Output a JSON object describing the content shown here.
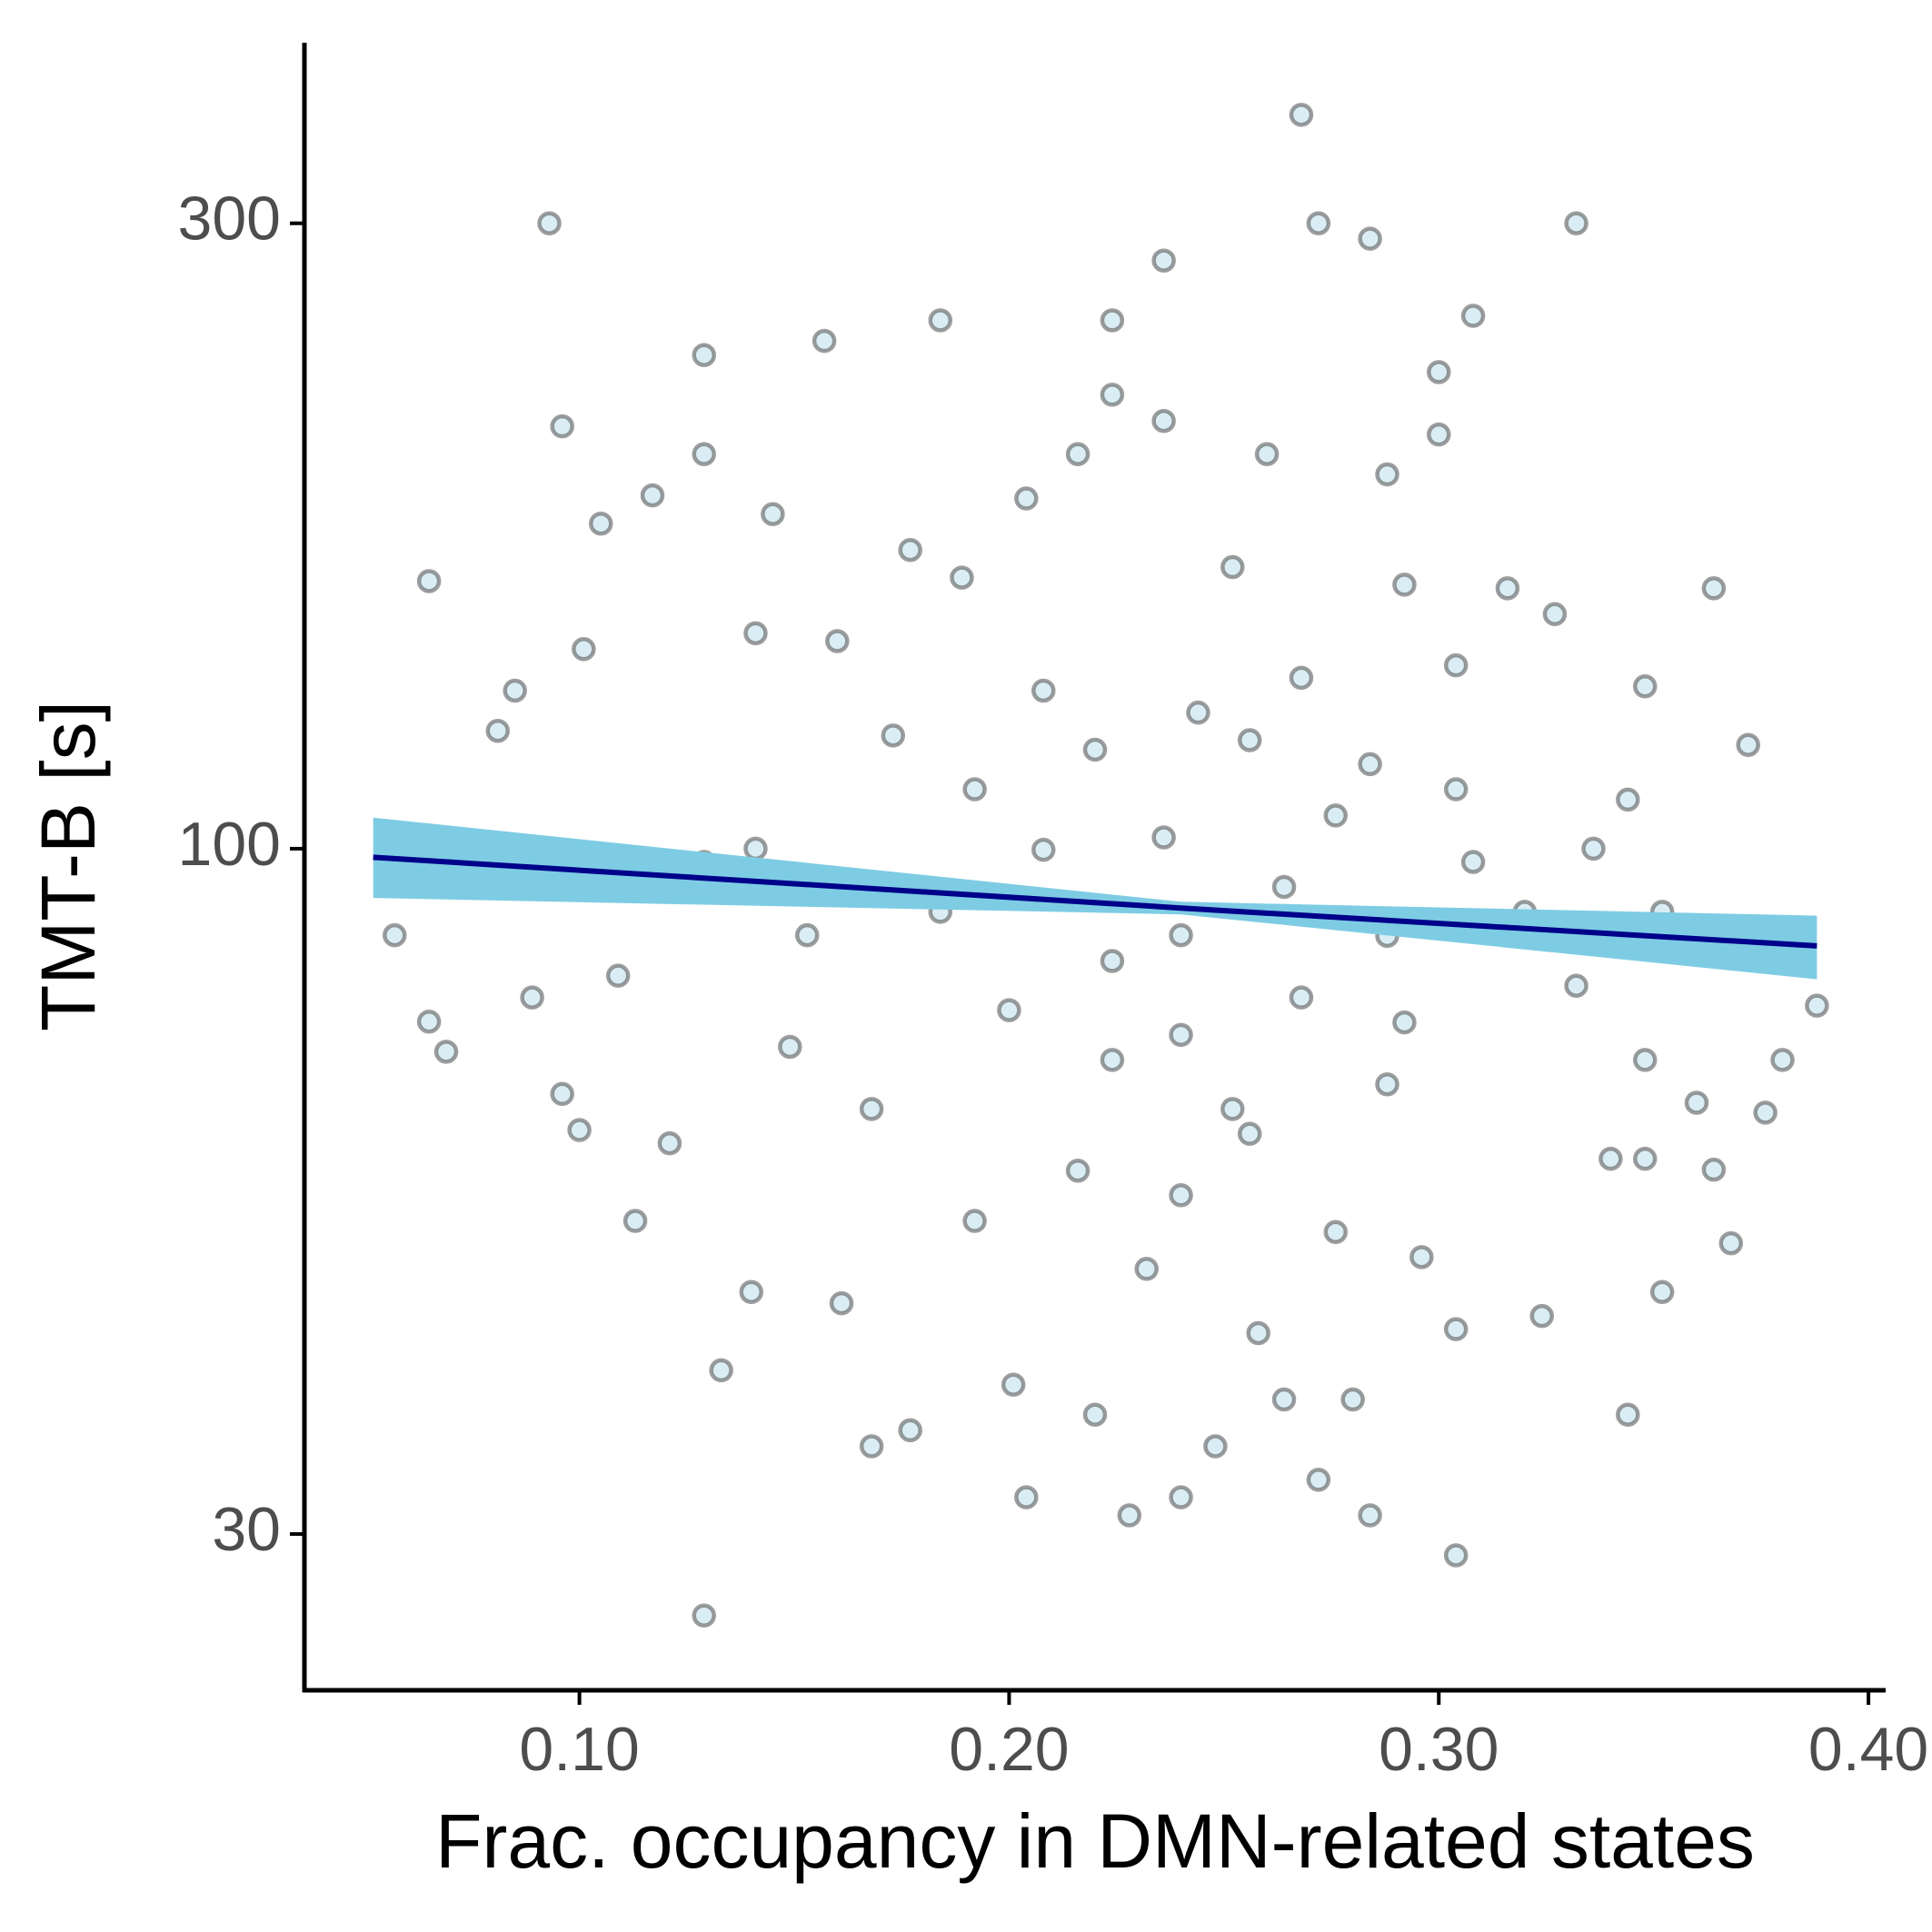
{
  "chart_data": {
    "type": "scatter",
    "x_label": "Frac. occupancy in DMN-related states",
    "y_label": "TMT-B [s]",
    "xlim": [
      0.036,
      0.404
    ],
    "ylim": [
      22.8,
      412
    ],
    "y_log": true,
    "xticks": [
      {
        "value": 0.1,
        "label": "0.10"
      },
      {
        "value": 0.2,
        "label": "0.20"
      },
      {
        "value": 0.3,
        "label": "0.30"
      },
      {
        "value": 0.4,
        "label": "0.40"
      }
    ],
    "yticks": [
      30,
      100,
      300
    ],
    "point_color": "#add8e6",
    "point_edge_color": "#4d4d4d",
    "x": [
      0.268,
      0.093,
      0.272,
      0.332,
      0.284,
      0.236,
      0.308,
      0.184,
      0.224,
      0.129,
      0.157,
      0.3,
      0.096,
      0.065,
      0.129,
      0.364,
      0.085,
      0.081,
      0.372,
      0.073,
      0.057,
      0.065,
      0.069,
      0.388,
      0.38,
      0.376,
      0.368,
      0.344,
      0.304,
      0.129,
      0.228,
      0.284,
      0.204,
      0.24,
      0.168,
      0.272,
      0.133,
      0.201,
      0.28,
      0.113,
      0.14,
      0.161,
      0.352,
      0.364,
      0.36,
      0.096,
      0.1,
      0.121,
      0.089,
      0.109,
      0.101,
      0.105,
      0.117,
      0.145,
      0.177,
      0.204,
      0.216,
      0.224,
      0.236,
      0.26,
      0.3,
      0.288,
      0.316,
      0.327,
      0.348,
      0.352,
      0.368,
      0.348,
      0.34,
      0.324,
      0.304,
      0.264,
      0.248,
      0.22,
      0.177,
      0.24,
      0.256,
      0.24,
      0.224,
      0.268,
      0.288,
      0.208,
      0.236,
      0.276,
      0.308,
      0.32,
      0.192,
      0.22,
      0.256,
      0.284,
      0.184,
      0.153,
      0.141,
      0.129,
      0.173,
      0.208,
      0.244,
      0.268,
      0.304,
      0.224,
      0.252,
      0.288,
      0.216,
      0.276,
      0.192,
      0.296,
      0.232,
      0.168,
      0.149,
      0.332,
      0.336,
      0.304,
      0.344,
      0.16,
      0.141,
      0.189,
      0.252,
      0.292,
      0.24,
      0.264,
      0.2,
      0.292,
      0.348,
      0.258
    ],
    "y": [
      363,
      300,
      300,
      300,
      292,
      281,
      255,
      253,
      253,
      238,
      244,
      231,
      210,
      160,
      200,
      158,
      132,
      123,
      120,
      100,
      85.9,
      73.8,
      70,
      75.9,
      69,
      62.9,
      50,
      37,
      28.9,
      26,
      31,
      31,
      32,
      32,
      35,
      33,
      40,
      39,
      38,
      52,
      45.9,
      45,
      45.9,
      56.9,
      64,
      65,
      61,
      59.6,
      77,
      80,
      142,
      177,
      186,
      180,
      169,
      185,
      200,
      222,
      212,
      200,
      207,
      193,
      158,
      151,
      133,
      89.5,
      83,
      69,
      58,
      44,
      43,
      38,
      35,
      37,
      36,
      54.4,
      60.6,
      72.1,
      82.1,
      77,
      85.8,
      99.8,
      102,
      106,
      97.7,
      89.5,
      111,
      119,
      121,
      116,
      89.5,
      85.9,
      100,
      97.7,
      122,
      132,
      127,
      135,
      138,
      69,
      63.3,
      66.1,
      56.8,
      51,
      52,
      48.8,
      47.8,
      63.3,
      70.6,
      78.6,
      100,
      111,
      109,
      144,
      146,
      161,
      164,
      159,
      85.9,
      93.5,
      75.3,
      73.7,
      58,
      42.7
    ],
    "fit": {
      "color": "#00008b",
      "band_color": "#7ecce3",
      "x": [
        0.052,
        0.24,
        0.388
      ],
      "y": [
        98.5,
        90.1,
        84.3
      ],
      "lower": [
        91.7,
        89.1,
        79.5
      ],
      "upper": [
        105.6,
        91.1,
        88.9
      ]
    }
  }
}
